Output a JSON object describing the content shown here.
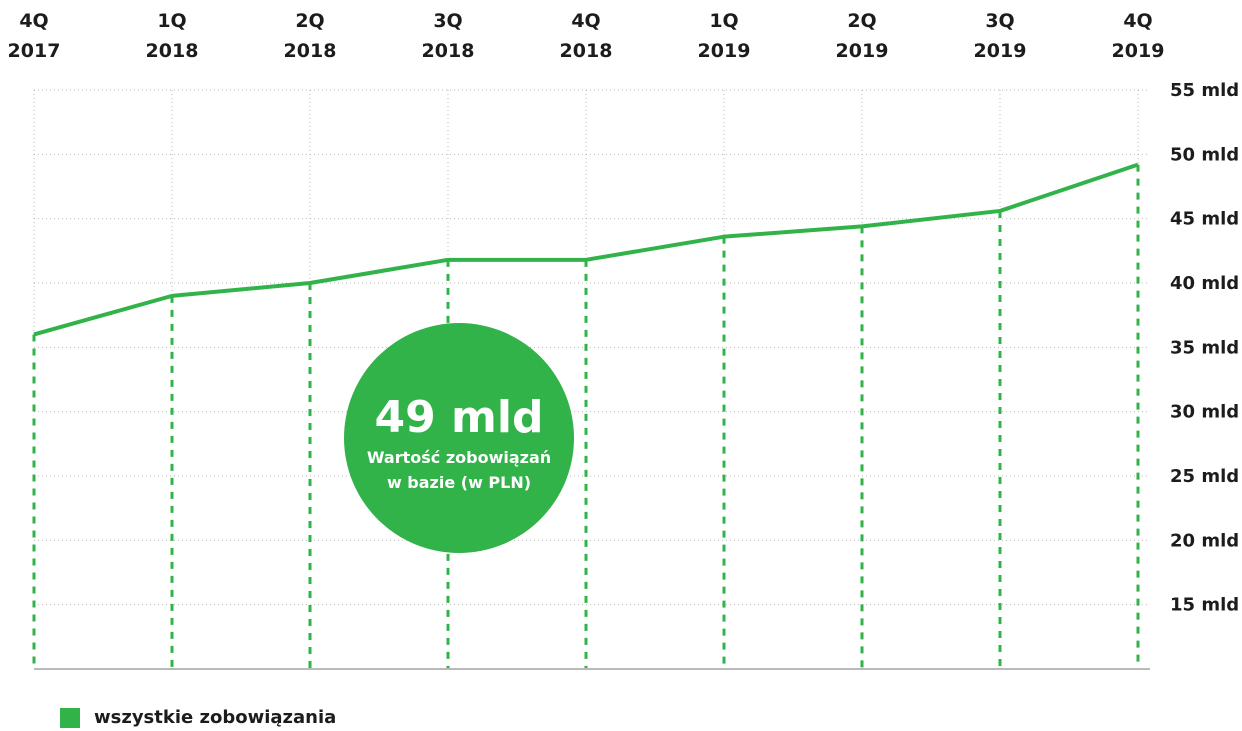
{
  "chart_data": {
    "type": "line",
    "categories": [
      [
        "4Q",
        "2017"
      ],
      [
        "1Q",
        "2018"
      ],
      [
        "2Q",
        "2018"
      ],
      [
        "3Q",
        "2018"
      ],
      [
        "4Q",
        "2018"
      ],
      [
        "1Q",
        "2019"
      ],
      [
        "2Q",
        "2019"
      ],
      [
        "3Q",
        "2019"
      ],
      [
        "4Q",
        "2019"
      ]
    ],
    "series": [
      {
        "name": "wszystkie zobowiązania",
        "values": [
          36.0,
          39.0,
          40.0,
          41.8,
          41.8,
          43.6,
          44.4,
          45.6,
          49.2
        ],
        "color": "#32b34a"
      }
    ],
    "yticks": [
      {
        "value": 55,
        "label": "55 mld"
      },
      {
        "value": 50,
        "label": "50 mld"
      },
      {
        "value": 45,
        "label": "45 mld"
      },
      {
        "value": 40,
        "label": "40 mld"
      },
      {
        "value": 35,
        "label": "35 mld"
      },
      {
        "value": 30,
        "label": "30 mld"
      },
      {
        "value": 25,
        "label": "25 mld"
      },
      {
        "value": 20,
        "label": "20 mld"
      },
      {
        "value": 15,
        "label": "15 mld"
      }
    ],
    "ylim": [
      10,
      55
    ],
    "grid": true,
    "y_axis_side": "right",
    "x_axis_side": "top",
    "legend_position": "bottom-left"
  },
  "badge": {
    "value": "49 mld",
    "caption_line1": "Wartość zobowiązań",
    "caption_line2": "w bazie (w PLN)",
    "color": "#32b34a"
  },
  "legend": {
    "label": "wszystkie zobowiązania"
  }
}
